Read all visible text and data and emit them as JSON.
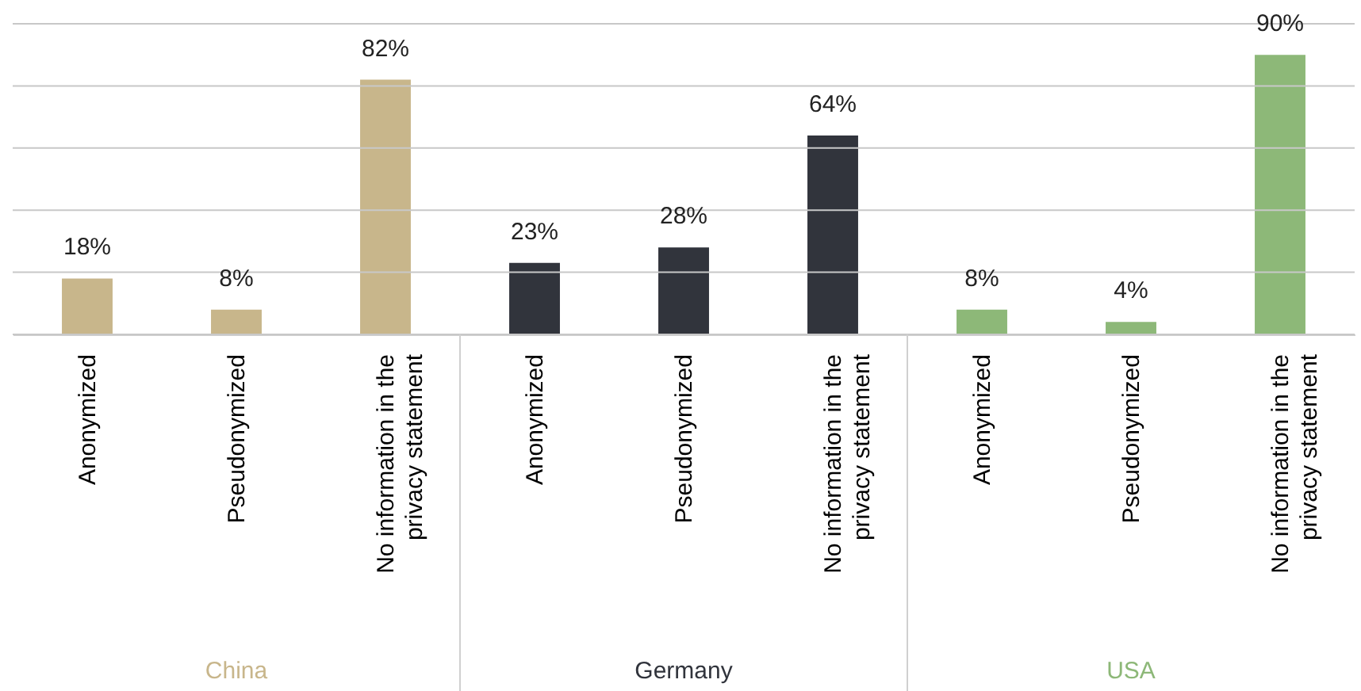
{
  "chart_data": {
    "type": "bar",
    "categories": [
      "Anonymized",
      "Pseudonymized",
      "No information in the privacy statement",
      "Anonymized",
      "Pseudonymized",
      "No information in the privacy statement",
      "Anonymized",
      "Pseudonymized",
      "No information in the privacy statement"
    ],
    "series": [
      {
        "name": "China",
        "color": "#c8b68b",
        "values": [
          18,
          8,
          82,
          null,
          null,
          null,
          null,
          null,
          null
        ],
        "value_labels": [
          "18%",
          "8%",
          "82%",
          null,
          null,
          null,
          null,
          null,
          null
        ]
      },
      {
        "name": "Germany",
        "color": "#31343c",
        "values": [
          null,
          null,
          null,
          23,
          28,
          64,
          null,
          null,
          null
        ],
        "value_labels": [
          null,
          null,
          null,
          "23%",
          "28%",
          "64%",
          null,
          null,
          null
        ]
      },
      {
        "name": "USA",
        "color": "#8db878",
        "values": [
          null,
          null,
          null,
          null,
          null,
          null,
          8,
          4,
          90
        ],
        "value_labels": [
          null,
          null,
          null,
          null,
          null,
          null,
          "8%",
          "4%",
          "90%"
        ]
      }
    ],
    "ylim": [
      0,
      100
    ],
    "yticks": [
      0,
      20,
      40,
      60,
      80,
      100
    ],
    "grid": "y",
    "tick_labels": "x",
    "legend": false
  }
}
